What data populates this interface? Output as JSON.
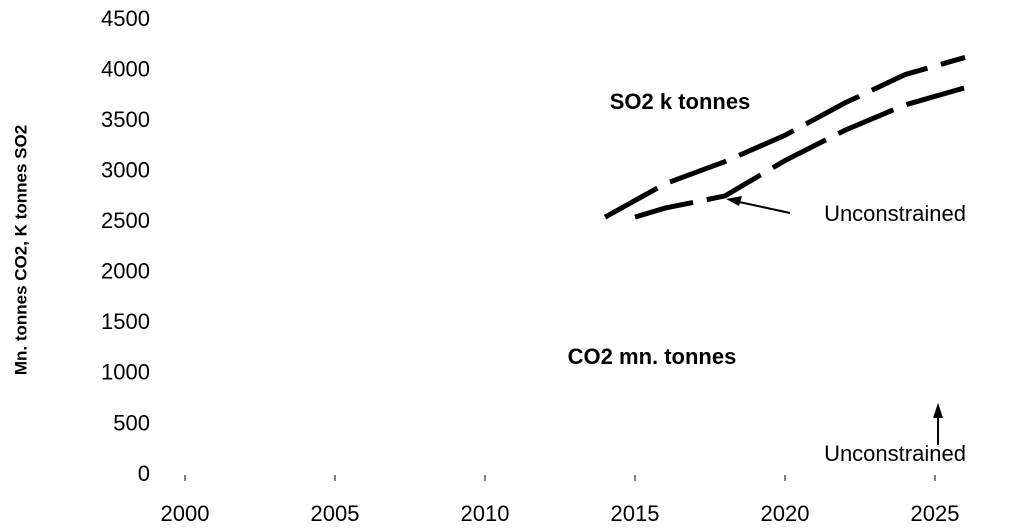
{
  "chart_data": {
    "type": "line",
    "y_label": "Mn. tonnes CO2, K tonnes SO2",
    "xlim": [
      1998,
      2027
    ],
    "xticks": [
      2000,
      2005,
      2010,
      2015,
      2020,
      2025
    ],
    "ylim": [
      0,
      4500
    ],
    "yticks": [
      0,
      500,
      1000,
      1500,
      2000,
      2500,
      3000,
      3500,
      4000,
      4500
    ],
    "series": [
      {
        "color": "#000000",
        "x": [
          2014,
          2016,
          2018,
          2020,
          2022,
          2024,
          2026
        ],
        "values": [
          2550,
          2880,
          3100,
          3360,
          3680,
          3960,
          4130
        ]
      },
      {
        "color": "#000000",
        "x": [
          2015,
          2016,
          2018,
          2020,
          2022,
          2024,
          2026
        ],
        "values": [
          2550,
          2640,
          2760,
          3110,
          3410,
          3660,
          3830
        ]
      }
    ],
    "annotations": [
      "SO2 k tonnes",
      "Unconstrained",
      "CO2 mn. tonnes",
      "Unconstrained"
    ]
  }
}
